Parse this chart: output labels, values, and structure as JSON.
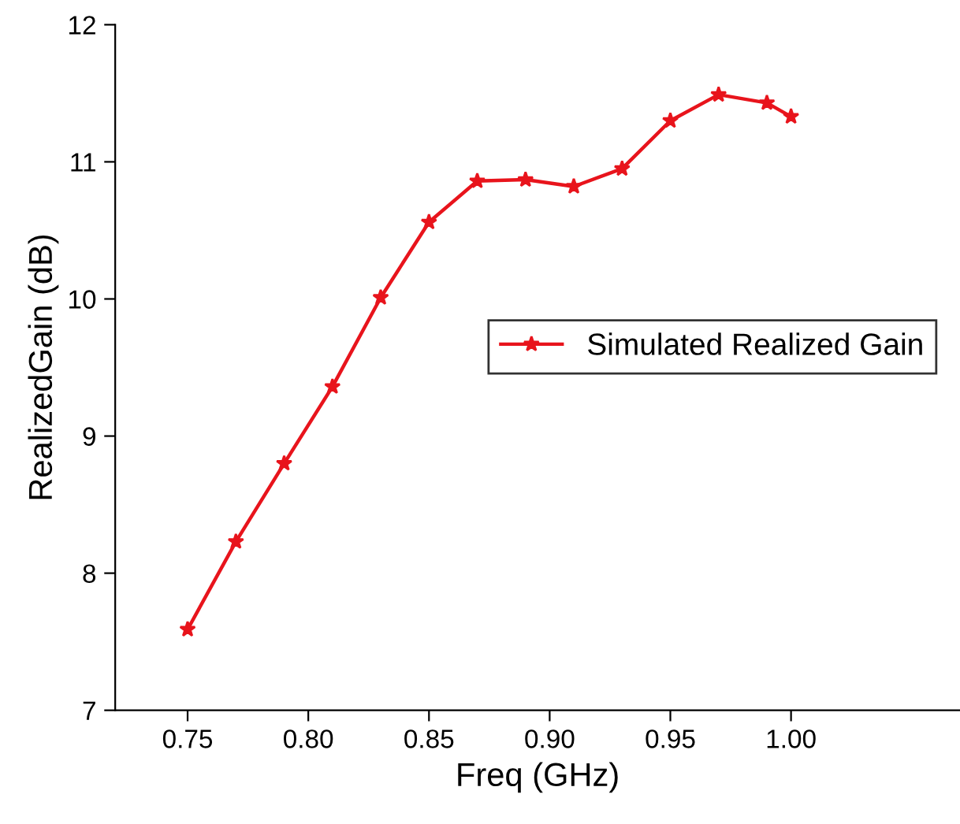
{
  "chart_data": {
    "type": "line",
    "xlabel": "Freq (GHz)",
    "ylabel": "RealizedGain (dB)",
    "x": [
      0.75,
      0.77,
      0.79,
      0.81,
      0.83,
      0.85,
      0.87,
      0.89,
      0.91,
      0.93,
      0.95,
      0.97,
      0.99,
      1.0
    ],
    "series": [
      {
        "name": "Simulated Realized Gain",
        "color": "#e8141c",
        "values": [
          7.59,
          8.23,
          8.8,
          9.36,
          10.01,
          10.56,
          10.86,
          10.87,
          10.82,
          10.95,
          11.3,
          11.49,
          11.43,
          11.33
        ]
      }
    ],
    "xlim": [
      0.72,
      1.07
    ],
    "ylim": [
      7,
      12
    ],
    "xticks": [
      0.75,
      {
        "value": 0.8,
        "label": "0.80"
      },
      0.85,
      {
        "value": 0.9,
        "label": "0.90"
      },
      0.95,
      {
        "value": 1.0,
        "label": "1.00"
      }
    ],
    "yticks": [
      7,
      8,
      9,
      10,
      11,
      12
    ],
    "marker": "star",
    "line_style": "solid",
    "legend": "right",
    "grid": false
  }
}
